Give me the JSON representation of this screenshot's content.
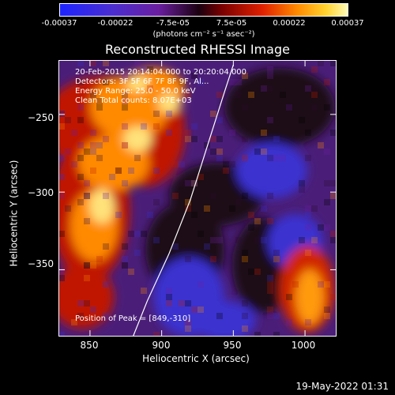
{
  "colorbar": {
    "ticks": [
      "-0.00037",
      "-0.00022",
      "-7.5e-05",
      "7.5e-05",
      "0.00022",
      "0.00037"
    ],
    "unit": "(photons cm⁻² s⁻¹ asec⁻²)"
  },
  "chart_data": {
    "type": "heatmap",
    "title": "Reconstructed RHESSI Image",
    "xlabel": "Heliocentric X (arcsec)",
    "ylabel": "Heliocentric Y (arcsec)",
    "xlim": [
      828,
      1022
    ],
    "ylim": [
      -393,
      -215
    ],
    "xticks": [
      850,
      900,
      950,
      1000
    ],
    "yticks": [
      -250,
      -300,
      -350
    ],
    "xtick_labels": [
      "850",
      "900",
      "950",
      "1000"
    ],
    "ytick_labels": [
      "−250",
      "−300",
      "−350"
    ],
    "color_range": [
      -0.00037,
      0.00037
    ],
    "colormap": "blue-purple-red-yellow-white",
    "limb_curve": [
      [
        880,
        -393
      ],
      [
        890,
        -370
      ],
      [
        905,
        -340
      ],
      [
        920,
        -305
      ],
      [
        932,
        -270
      ],
      [
        944,
        -235
      ],
      [
        950,
        -218
      ]
    ],
    "peak_position": [
      849,
      -310
    ]
  },
  "info": {
    "line1": "20-Feb-2015 20:14:04.000 to 20:20:04.000",
    "line2": "Detectors: 3F 5F 6F 7F 8F 9F, Al...",
    "line3": "Energy Range: 25.0 - 50.0 keV",
    "line4": "Clean      Total counts: 8.07E+03",
    "peak": "Position of Peak = [849,-310]"
  },
  "footer": {
    "timestamp": "19-May-2022 01:31"
  }
}
